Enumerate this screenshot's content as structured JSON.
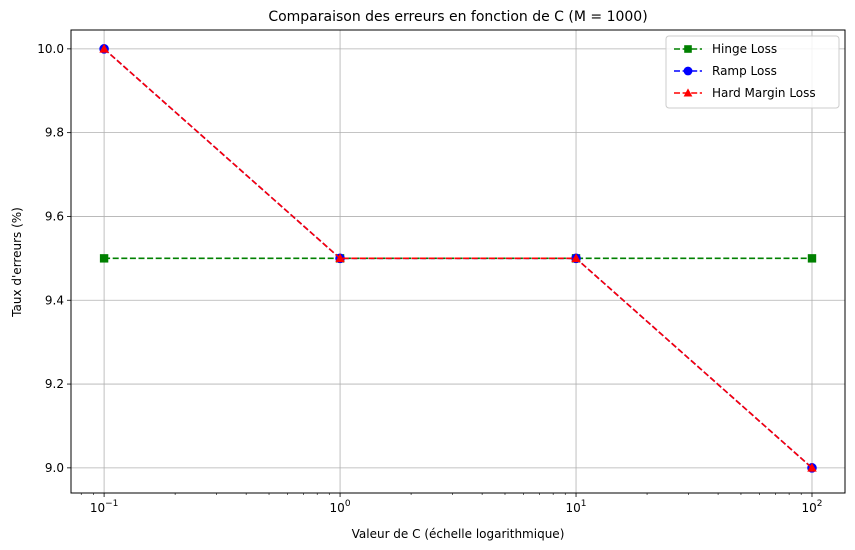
{
  "chart_data": {
    "type": "line",
    "title": "Comparaison des erreurs en fonction de C (M = 1000)",
    "xlabel": "Valeur de C (échelle logarithmique)",
    "ylabel": "Taux d'erreurs (%)",
    "x_scale": "log",
    "x": [
      0.1,
      1,
      10,
      100
    ],
    "xlim": [
      0.0724,
      138
    ],
    "ylim": [
      8.94,
      10.045
    ],
    "x_ticks": [
      {
        "value": 0.1,
        "base": "10",
        "exp": "−1"
      },
      {
        "value": 1,
        "base": "10",
        "exp": "0"
      },
      {
        "value": 10,
        "base": "10",
        "exp": "1"
      },
      {
        "value": 100,
        "base": "10",
        "exp": "2"
      }
    ],
    "y_ticks": [
      9.0,
      9.2,
      9.4,
      9.6,
      9.8,
      10.0
    ],
    "y_tick_labels": [
      "9.0",
      "9.2",
      "9.4",
      "9.6",
      "9.8",
      "10.0"
    ],
    "grid": true,
    "legend_position": "top-right",
    "series": [
      {
        "name": "Hinge Loss",
        "values": [
          9.5,
          9.5,
          9.5,
          9.5
        ],
        "color": "#008000",
        "marker": "square",
        "linestyle": "dashed"
      },
      {
        "name": "Ramp Loss",
        "values": [
          10.0,
          9.5,
          9.5,
          9.0
        ],
        "color": "#0000ff",
        "marker": "circle",
        "linestyle": "dashed"
      },
      {
        "name": "Hard Margin Loss",
        "values": [
          10.0,
          9.5,
          9.5,
          9.0
        ],
        "color": "#ff0000",
        "marker": "triangle",
        "linestyle": "dashed"
      }
    ]
  }
}
